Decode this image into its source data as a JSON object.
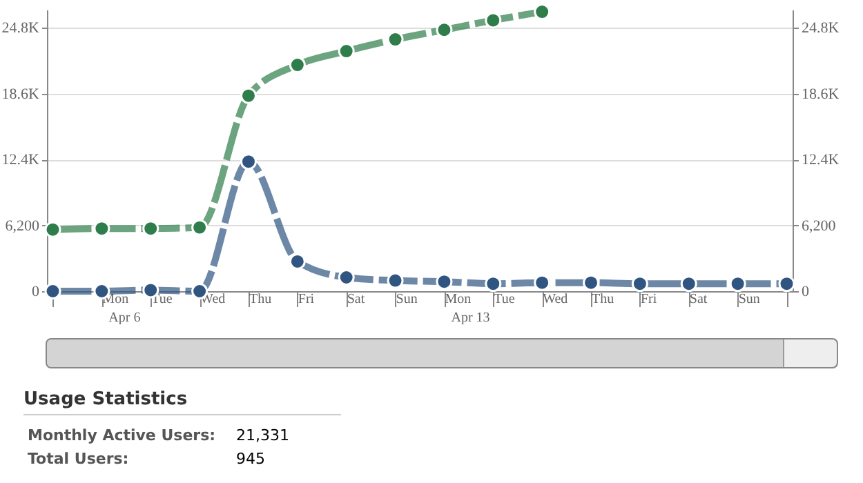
{
  "chart_data": [
    {
      "type": "line",
      "categories": [
        null,
        "Mon\nApr 6",
        "Tue",
        "Wed",
        "Thu",
        "Fri",
        "Sat",
        "Sun",
        "Mon\nApr 13",
        "Tue",
        "Wed",
        "Thu",
        "Fri",
        "Sat",
        "Sun",
        null
      ],
      "series": [
        {
          "color": "#2e7d4a",
          "values": [
            5800,
            5900,
            5900,
            6000,
            18400,
            21300,
            22600,
            23700,
            24600,
            25500,
            26300,
            null,
            null,
            null,
            null,
            null
          ]
        },
        {
          "color": "#2f5580",
          "values": [
            0,
            0,
            100,
            0,
            12200,
            2800,
            1300,
            1000,
            900,
            700,
            800,
            800,
            700,
            700,
            700,
            700
          ]
        }
      ],
      "ylim": [
        0,
        26500
      ],
      "yticks": [
        0,
        {
          "value": 6200,
          "label": "6,200"
        },
        {
          "value": 12400,
          "label": "12.4K"
        },
        {
          "value": 18600,
          "label": "18.6K"
        },
        {
          "value": 24800,
          "label": "24.8K"
        }
      ],
      "y2lim": [
        0,
        26500
      ],
      "y2ticks": [
        0,
        {
          "value": 6200,
          "label": "6,200"
        },
        {
          "value": 12400,
          "label": "12.4K"
        },
        {
          "value": 18600,
          "label": "18.6K"
        },
        {
          "value": 24800,
          "label": "24.8K"
        }
      ],
      "grid": "y",
      "marker": "circle",
      "line_style": "dashed"
    },
    {
      "type": "other",
      "title": "Usage Statistics",
      "annotations": [
        "Monthly Active Users:",
        "21,331",
        "Total Users:",
        "945"
      ]
    }
  ]
}
